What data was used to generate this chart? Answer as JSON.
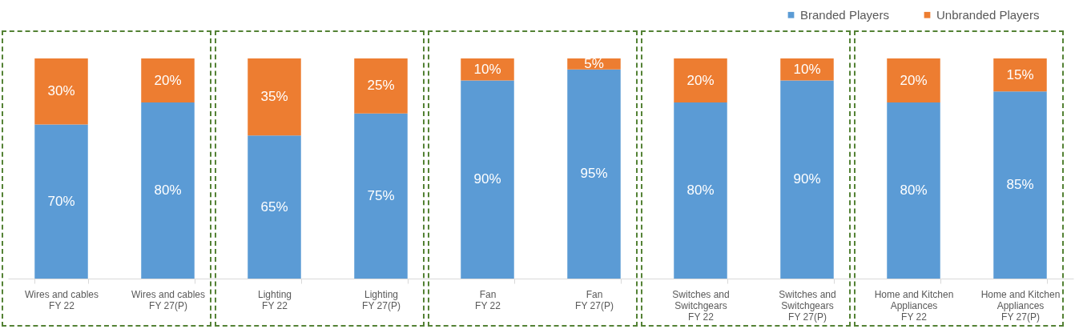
{
  "chart_data": {
    "type": "bar",
    "stacked": true,
    "categories": [
      "Wires and cables\nFY 22",
      "Wires and cables\nFY 27(P)",
      "Lighting\nFY 22",
      "Lighting\nFY 27(P)",
      "Fan\nFY 22",
      "Fan\nFY 27(P)",
      "Switches and\nSwitchgears\nFY 22",
      "Switches and\nSwitchgears\nFY 27(P)",
      "Home and Kitchen\nAppliances\nFY 22",
      "Home and Kitchen\nAppliances\nFY 27(P)"
    ],
    "ylim": [
      0,
      100
    ],
    "tick_labels": "x",
    "legend": "top right",
    "grid": false,
    "series": [
      {
        "name": "Branded Players",
        "color": "#5b9bd5",
        "values": [
          70,
          80,
          65,
          75,
          90,
          95,
          80,
          90,
          80,
          85
        ],
        "value_labels": [
          "70%",
          "80%",
          "65%",
          "75%",
          "90%",
          "95%",
          "80%",
          "90%",
          "80%",
          "85%"
        ]
      },
      {
        "name": "Unbranded Players",
        "color": "#ed7d31",
        "values": [
          30,
          20,
          35,
          25,
          10,
          5,
          20,
          10,
          20,
          15
        ],
        "value_labels": [
          "30%",
          "20%",
          "35%",
          "25%",
          "10%",
          "5%",
          "20%",
          "10%",
          "20%",
          "15%"
        ]
      }
    ]
  }
}
